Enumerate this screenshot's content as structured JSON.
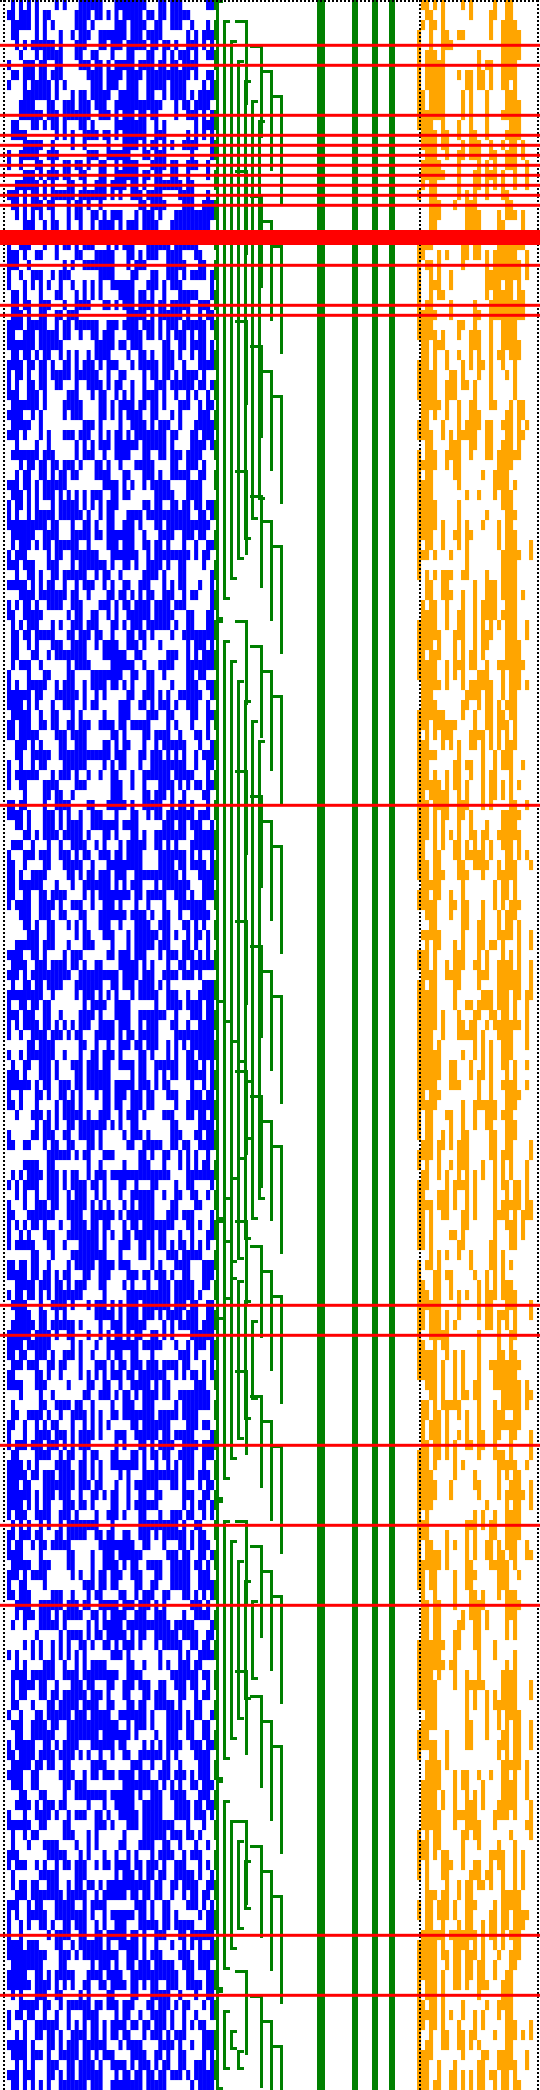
{
  "visualization": {
    "rows": 209,
    "panels": [
      {
        "name": "left-bit-grid",
        "color": "#0000ff"
      },
      {
        "name": "middle-stepped-lines",
        "color": "#008000"
      },
      {
        "name": "right-bit-grid",
        "color": "#ffa500"
      }
    ],
    "separator_color": "#000000",
    "highlight_color": "#ff0000",
    "highlight_rows": [
      4,
      6,
      11,
      13,
      14,
      15,
      16,
      17,
      18,
      19,
      20,
      23,
      26,
      30,
      31,
      80,
      130,
      133,
      144,
      152,
      160,
      193,
      199
    ],
    "texture_seed": 1729
  }
}
